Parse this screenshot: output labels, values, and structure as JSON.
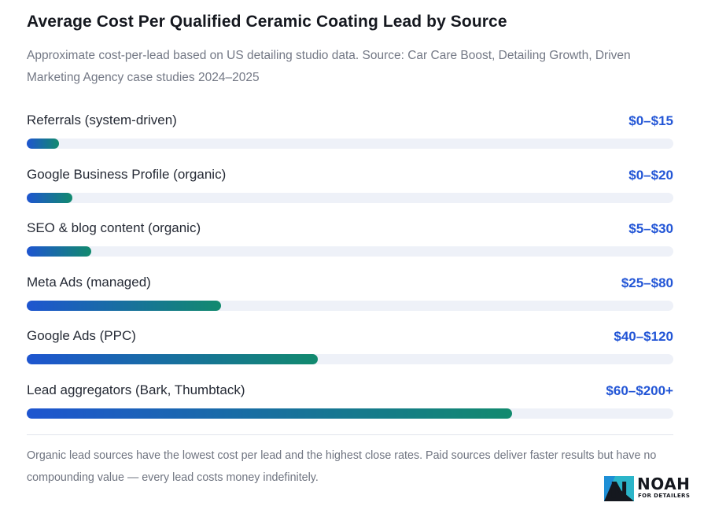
{
  "chart_data": {
    "type": "bar",
    "orientation": "horizontal",
    "title": "Average Cost Per Qualified Ceramic Coating Lead by Source",
    "subtitle": "Approximate cost-per-lead based on US detailing studio data. Source: Car Care Boost, Detailing Growth, Driven Marketing Agency case studies 2024–2025",
    "categories": [
      "Referrals (system-driven)",
      "Google Business Profile (organic)",
      "SEO & blog content (organic)",
      "Meta Ads (managed)",
      "Google Ads (PPC)",
      "Lead aggregators (Bark, Thumbtack)"
    ],
    "value_labels": [
      "$0–$15",
      "$0–$20",
      "$5–$30",
      "$25–$80",
      "$40–$120",
      "$60–$200+"
    ],
    "values": [
      5,
      7,
      10,
      30,
      45,
      75
    ],
    "value_unit": "percent of bar track filled",
    "xlim": [
      0,
      100
    ],
    "grid": false,
    "legend": "none",
    "colors": {
      "fill_start": "#1e55d0",
      "fill_end": "#128a6e",
      "track": "#eef1f8",
      "value_text": "#2356d6"
    }
  },
  "footnote": "Organic lead sources have the lowest cost per lead and the highest close rates. Paid sources deliver faster results but have no compounding value — every lead costs money indefinitely.",
  "logo": {
    "mark": "N",
    "word": "NOAH",
    "tagline": "FOR DETAILERS"
  }
}
